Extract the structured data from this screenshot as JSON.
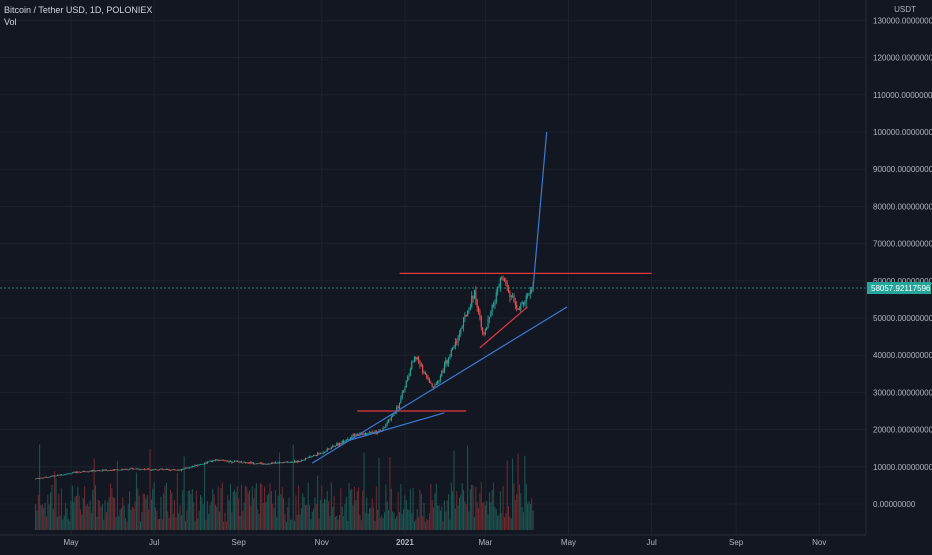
{
  "header": {
    "symbol_line": "Bitcoin / Tether USD, 1D, POLONIEX",
    "vol_label": "Vol"
  },
  "price_axis": {
    "currency": "USDT",
    "labels": [
      "130000.00000000",
      "120000.00000000",
      "110000.00000000",
      "100000.00000000",
      "90000.00000000",
      "80000.00000000",
      "70000.00000000",
      "60000.00000000",
      "50000.00000000",
      "40000.00000000",
      "30000.00000000",
      "20000.00000000",
      "10000.00000000",
      "0.00000000"
    ],
    "current_price_label": "58057.92117596"
  },
  "colors": {
    "background": "#131722",
    "grid": "#1e222d",
    "text": "#b2b5be",
    "up": "#26a69a",
    "down": "#ef5350",
    "price_tag": "#26a69a",
    "trendline_blue": "#2962ff",
    "line_red": "#f23645"
  },
  "chart_data": {
    "type": "candlestick",
    "instrument": "Bitcoin / Tether USD",
    "exchange": "POLONIEX",
    "interval": "1D",
    "ylim": [
      0,
      130000
    ],
    "x_ticks": [
      "May",
      "Jul",
      "Sep",
      "Nov",
      "2021",
      "Mar",
      "May",
      "Jul",
      "Sep",
      "Nov"
    ],
    "last_price": 58057.92117596,
    "price_path": [
      {
        "date": "2020-04-05",
        "close": 6800
      },
      {
        "date": "2020-05-10",
        "close": 8800
      },
      {
        "date": "2020-06-15",
        "close": 9400
      },
      {
        "date": "2020-07-20",
        "close": 9200
      },
      {
        "date": "2020-08-15",
        "close": 11800
      },
      {
        "date": "2020-09-20",
        "close": 10800
      },
      {
        "date": "2020-10-15",
        "close": 11500
      },
      {
        "date": "2020-11-01",
        "close": 13800
      },
      {
        "date": "2020-11-25",
        "close": 18500
      },
      {
        "date": "2020-12-15",
        "close": 19500
      },
      {
        "date": "2020-12-28",
        "close": 27000
      },
      {
        "date": "2021-01-08",
        "close": 40000
      },
      {
        "date": "2021-01-22",
        "close": 31000
      },
      {
        "date": "2021-02-08",
        "close": 44000
      },
      {
        "date": "2021-02-21",
        "close": 57000
      },
      {
        "date": "2021-02-28",
        "close": 45000
      },
      {
        "date": "2021-03-13",
        "close": 61000
      },
      {
        "date": "2021-03-25",
        "close": 52000
      },
      {
        "date": "2021-04-05",
        "close": 58057
      }
    ],
    "drawings": [
      {
        "kind": "projection",
        "color": "blue",
        "from": {
          "date": "2021-04-05",
          "price": 58057
        },
        "to": {
          "date": "2021-04-15",
          "price": 100000
        }
      },
      {
        "kind": "horizontal",
        "color": "red",
        "price": 62000,
        "from": "2020-12-28",
        "to": "2021-07-01"
      },
      {
        "kind": "horizontal",
        "color": "red",
        "price": 25000,
        "from": "2020-11-27",
        "to": "2021-02-15"
      },
      {
        "kind": "trendline",
        "color": "blue",
        "from": {
          "date": "2020-10-25",
          "price": 11000
        },
        "to": {
          "date": "2021-04-30",
          "price": 53000
        }
      },
      {
        "kind": "trendline",
        "color": "blue",
        "from": {
          "date": "2020-11-20",
          "price": 17000
        },
        "to": {
          "date": "2021-01-30",
          "price": 24500
        }
      },
      {
        "kind": "trendline",
        "color": "red",
        "from": {
          "date": "2021-02-25",
          "price": 42000
        },
        "to": {
          "date": "2021-04-01",
          "price": 53000
        }
      }
    ]
  }
}
